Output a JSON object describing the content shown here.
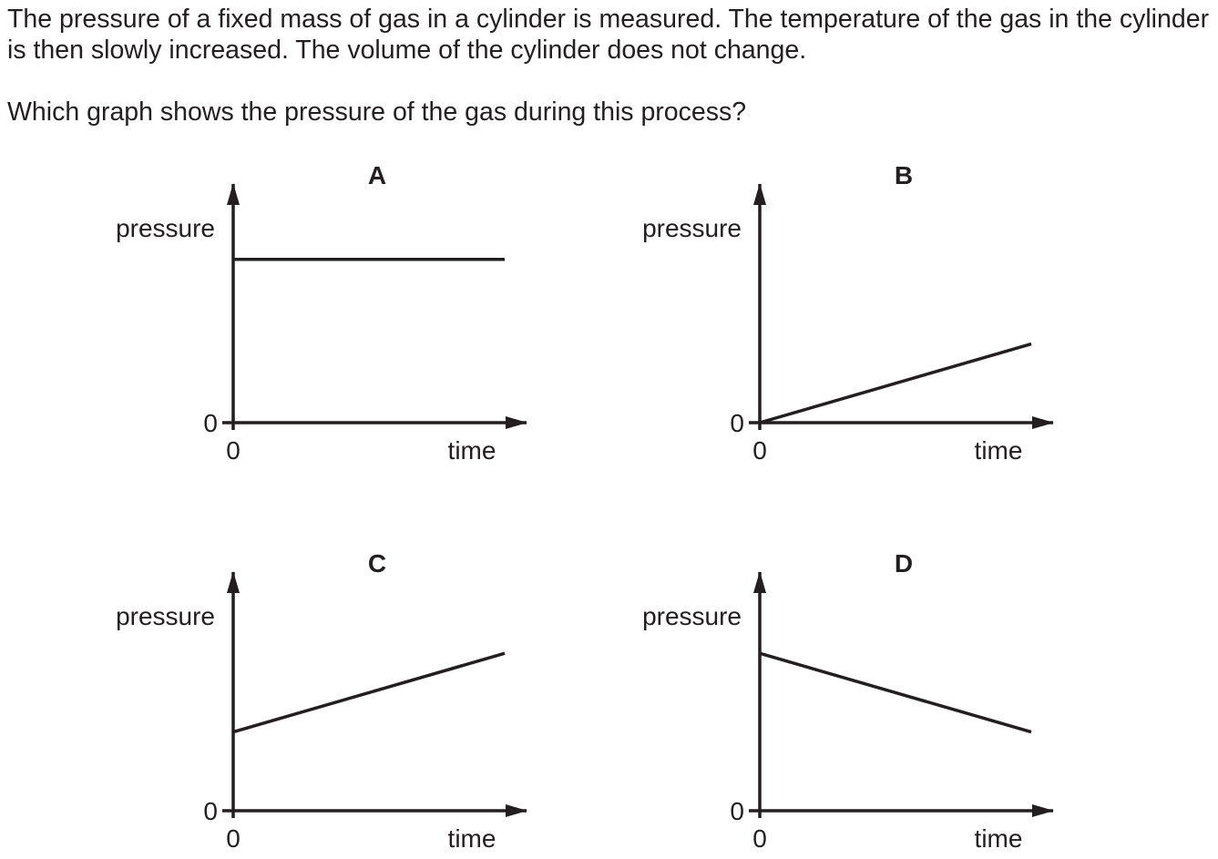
{
  "question": {
    "text": "The pressure of a fixed mass of gas in a cylinder is measured. The temperature of the gas in the cylinder is then slowly increased. The volume of the cylinder does not change.",
    "prompt": "Which graph shows the pressure of the gas during this process?"
  },
  "colors": {
    "ink": "#231f20",
    "background": "#ffffff"
  },
  "chart_data": [
    {
      "type": "line",
      "title": "A",
      "xlabel": "time",
      "ylabel": "pressure",
      "x_origin_label": "0",
      "y_origin_label": "0",
      "series": [
        {
          "x": [
            0,
            1
          ],
          "y": [
            0.83,
            0.83
          ]
        }
      ],
      "xlim": [
        0,
        1
      ],
      "ylim": [
        0,
        1
      ]
    },
    {
      "type": "line",
      "title": "B",
      "xlabel": "time",
      "ylabel": "pressure",
      "x_origin_label": "0",
      "y_origin_label": "0",
      "series": [
        {
          "x": [
            0,
            1
          ],
          "y": [
            0,
            0.4
          ]
        }
      ],
      "xlim": [
        0,
        1
      ],
      "ylim": [
        0,
        1
      ]
    },
    {
      "type": "line",
      "title": "C",
      "xlabel": "time",
      "ylabel": "pressure",
      "x_origin_label": "0",
      "y_origin_label": "0",
      "series": [
        {
          "x": [
            0,
            1
          ],
          "y": [
            0.4,
            0.8
          ]
        }
      ],
      "xlim": [
        0,
        1
      ],
      "ylim": [
        0,
        1
      ]
    },
    {
      "type": "line",
      "title": "D",
      "xlabel": "time",
      "ylabel": "pressure",
      "x_origin_label": "0",
      "y_origin_label": "0",
      "series": [
        {
          "x": [
            0,
            1
          ],
          "y": [
            0.8,
            0.4
          ]
        }
      ],
      "xlim": [
        0,
        1
      ],
      "ylim": [
        0,
        1
      ]
    }
  ]
}
